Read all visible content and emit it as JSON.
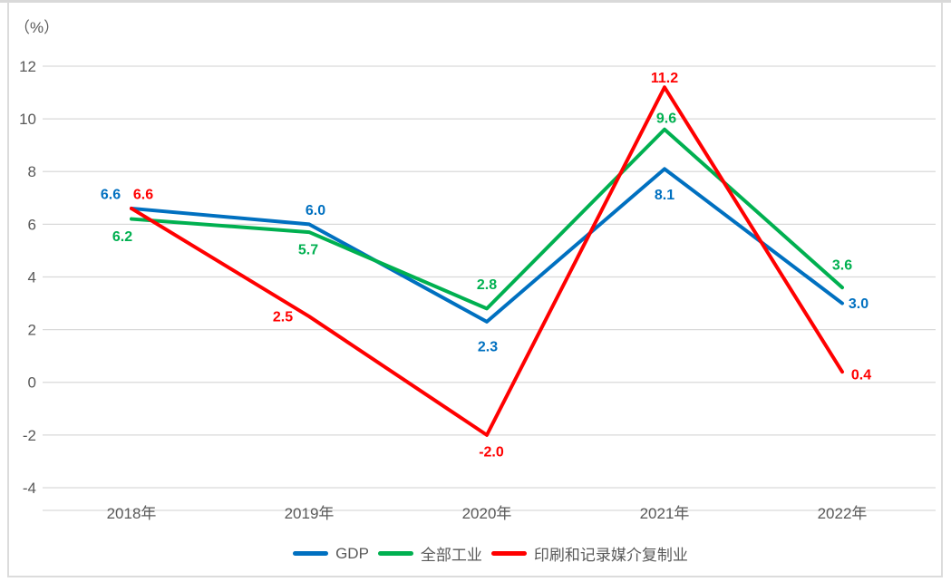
{
  "chart_data": {
    "type": "line",
    "unit_label": "（%）",
    "categories": [
      "2018年",
      "2019年",
      "2020年",
      "2021年",
      "2022年"
    ],
    "yticks": [
      "12",
      "10",
      "8",
      "6",
      "4",
      "2",
      "0",
      "-2",
      "-4"
    ],
    "ytick_values": [
      12,
      10,
      8,
      6,
      4,
      2,
      0,
      -2,
      -4
    ],
    "ylim": [
      -4,
      12
    ],
    "grid": true,
    "legend_position": "bottom",
    "axis_text_color": "#595959",
    "grid_color": "#d9d9d9",
    "series": [
      {
        "id": "gdp",
        "name": "GDP",
        "color": "#0070c0",
        "values": [
          6.6,
          6.0,
          2.3,
          8.1,
          3.0
        ],
        "point_labels": [
          "6.6",
          "6.0",
          "2.3",
          "8.1",
          "3.0"
        ],
        "label_offsets": [
          [
            -23,
            -16
          ],
          [
            7,
            -16
          ],
          [
            1,
            27
          ],
          [
            0,
            28
          ],
          [
            18,
            0
          ]
        ]
      },
      {
        "id": "all-industry",
        "name": "全部工业",
        "color": "#00b050",
        "values": [
          6.2,
          5.7,
          2.8,
          9.6,
          3.6
        ],
        "point_labels": [
          "6.2",
          "5.7",
          "2.8",
          "9.6",
          "3.6"
        ],
        "label_offsets": [
          [
            -10,
            19
          ],
          [
            -1,
            19
          ],
          [
            0,
            -27
          ],
          [
            2,
            -13
          ],
          [
            0,
            -25
          ]
        ]
      },
      {
        "id": "printing-media",
        "name": "印刷和记录媒介复制业",
        "color": "#ff0000",
        "values": [
          6.6,
          2.5,
          -2.0,
          11.2,
          0.4
        ],
        "point_labels": [
          "6.6",
          "2.5",
          "-2.0",
          "11.2",
          "0.4"
        ],
        "label_offsets": [
          [
            13,
            -16
          ],
          [
            -29,
            0
          ],
          [
            5,
            18
          ],
          [
            0,
            -11
          ],
          [
            21,
            3
          ]
        ]
      }
    ]
  }
}
